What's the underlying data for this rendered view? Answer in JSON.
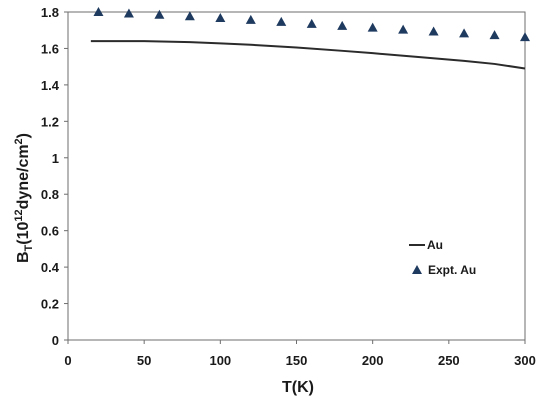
{
  "chart_data": {
    "type": "line",
    "xlabel": "T(K)",
    "ylabel": {
      "base": "B",
      "sub": "T",
      "open": "(10",
      "sup": "12",
      "mid": "dyne/cm",
      "sup2": "2",
      "close": ")"
    },
    "xlim": [
      0,
      300
    ],
    "ylim": [
      0,
      1.8
    ],
    "x_ticks": [
      0,
      50,
      100,
      150,
      200,
      250,
      300
    ],
    "y_ticks": [
      0,
      0.2,
      0.4,
      0.6,
      0.8,
      1,
      1.2,
      1.4,
      1.6,
      1.8
    ],
    "grid": false,
    "legend_position": "bottom-right",
    "series": [
      {
        "name": "Au",
        "style": "line",
        "color": "#2b2b2b",
        "x": [
          15,
          50,
          80,
          100,
          120,
          150,
          180,
          200,
          230,
          260,
          280,
          300
        ],
        "y": [
          1.64,
          1.64,
          1.635,
          1.628,
          1.62,
          1.605,
          1.587,
          1.574,
          1.553,
          1.532,
          1.515,
          1.49
        ]
      },
      {
        "name": "Expt. Au",
        "style": "triangle",
        "color": "#1f3a5f",
        "x": [
          20,
          40,
          60,
          80,
          100,
          120,
          140,
          160,
          180,
          200,
          220,
          240,
          260,
          280,
          300
        ],
        "y": [
          1.8,
          1.792,
          1.785,
          1.777,
          1.767,
          1.757,
          1.746,
          1.735,
          1.724,
          1.714,
          1.703,
          1.693,
          1.683,
          1.673,
          1.662
        ]
      }
    ]
  }
}
